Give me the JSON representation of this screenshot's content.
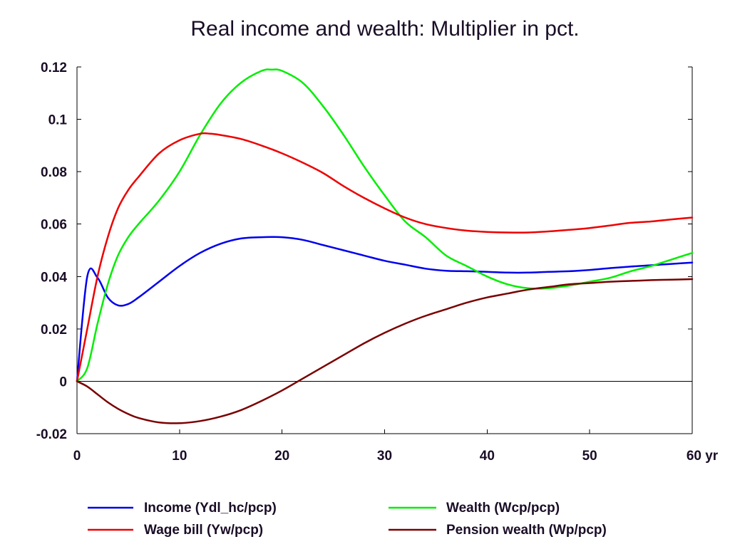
{
  "chart_data": {
    "type": "line",
    "title": "Real income and wealth: Multiplier in pct.",
    "xlabel": "",
    "ylabel": "",
    "xlim": [
      0,
      60
    ],
    "ylim": [
      -0.02,
      0.12
    ],
    "x_ticks": [
      "0",
      "10",
      "20",
      "30",
      "40",
      "50",
      "60 yr"
    ],
    "y_ticks": [
      "0.12",
      "0.1",
      "0.08",
      "0.06",
      "0.04",
      "0.02",
      "0",
      "-0.02"
    ],
    "zero_line": true,
    "grid": false,
    "legend_position": "bottom",
    "series": [
      {
        "name": "Income (Ydl_hc/pcp)",
        "color": "#0000ee",
        "x": [
          0,
          1,
          2,
          3,
          4,
          5,
          6,
          8,
          10,
          12,
          14,
          16,
          18,
          20,
          22,
          24,
          26,
          28,
          30,
          32,
          34,
          36,
          38,
          40,
          42,
          44,
          46,
          48,
          50,
          52,
          54,
          56,
          58,
          60
        ],
        "y": [
          0,
          0.04,
          0.0395,
          0.032,
          0.029,
          0.0295,
          0.032,
          0.038,
          0.044,
          0.049,
          0.0525,
          0.0545,
          0.055,
          0.055,
          0.054,
          0.052,
          0.05,
          0.048,
          0.046,
          0.0445,
          0.043,
          0.0422,
          0.042,
          0.0418,
          0.0415,
          0.0415,
          0.0418,
          0.042,
          0.0425,
          0.0432,
          0.0438,
          0.0443,
          0.0448,
          0.0453
        ]
      },
      {
        "name": "Wealth (Wcp/pcp)",
        "color": "#00ee00",
        "x": [
          0,
          1,
          2,
          3,
          4,
          5,
          6,
          8,
          10,
          12,
          14,
          16,
          18,
          19,
          20,
          22,
          24,
          26,
          28,
          30,
          32,
          34,
          36,
          38,
          40,
          42,
          44,
          46,
          48,
          50,
          52,
          54,
          56,
          58,
          60
        ],
        "y": [
          0,
          0.005,
          0.022,
          0.037,
          0.048,
          0.055,
          0.06,
          0.069,
          0.08,
          0.094,
          0.106,
          0.114,
          0.1185,
          0.119,
          0.1185,
          0.114,
          0.105,
          0.094,
          0.082,
          0.071,
          0.061,
          0.055,
          0.048,
          0.044,
          0.04,
          0.037,
          0.0355,
          0.0355,
          0.0365,
          0.038,
          0.0395,
          0.042,
          0.044,
          0.0465,
          0.049
        ]
      },
      {
        "name": "Wage bill (Yw/pcp)",
        "color": "#ee0000",
        "x": [
          0,
          1,
          2,
          3,
          4,
          5,
          6,
          8,
          10,
          12,
          13,
          14,
          16,
          18,
          20,
          22,
          24,
          26,
          28,
          30,
          32,
          34,
          36,
          38,
          40,
          42,
          44,
          46,
          48,
          50,
          52,
          54,
          56,
          58,
          60
        ],
        "y": [
          0,
          0.02,
          0.04,
          0.055,
          0.066,
          0.073,
          0.078,
          0.087,
          0.092,
          0.0945,
          0.0945,
          0.094,
          0.0925,
          0.09,
          0.087,
          0.0835,
          0.0795,
          0.0745,
          0.07,
          0.066,
          0.0625,
          0.06,
          0.0585,
          0.0575,
          0.057,
          0.0568,
          0.0568,
          0.0572,
          0.0578,
          0.0585,
          0.0595,
          0.0605,
          0.061,
          0.0618,
          0.0625
        ]
      },
      {
        "name": "Pension wealth (Wp/pcp)",
        "color": "#7a0000",
        "x": [
          0,
          1,
          2,
          3,
          4,
          5,
          6,
          8,
          10,
          12,
          14,
          16,
          18,
          20,
          22,
          24,
          26,
          28,
          30,
          32,
          34,
          36,
          38,
          40,
          42,
          44,
          46,
          48,
          50,
          52,
          54,
          56,
          58,
          60
        ],
        "y": [
          0,
          -0.002,
          -0.005,
          -0.008,
          -0.0105,
          -0.0125,
          -0.014,
          -0.0157,
          -0.016,
          -0.0152,
          -0.0135,
          -0.011,
          -0.0075,
          -0.0035,
          0.001,
          0.0055,
          0.01,
          0.0145,
          0.0185,
          0.022,
          0.025,
          0.0275,
          0.03,
          0.032,
          0.0335,
          0.035,
          0.036,
          0.037,
          0.0375,
          0.038,
          0.0383,
          0.0386,
          0.0388,
          0.039
        ]
      }
    ]
  }
}
